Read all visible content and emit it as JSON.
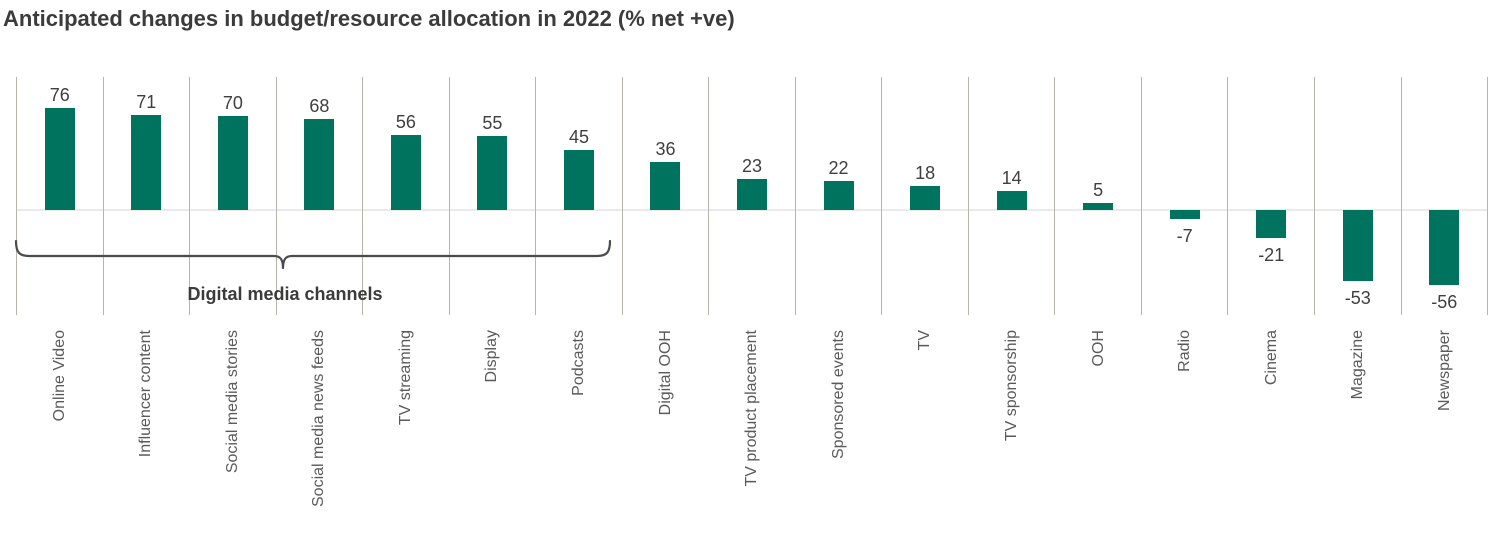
{
  "chart_data": {
    "type": "bar",
    "title": "Anticipated changes in budget/resource allocation in 2022 (% net +ve)",
    "categories": [
      "Online Video",
      "Influencer content",
      "Social media stories",
      "Social media news feeds",
      "TV streaming",
      "Display",
      "Podcasts",
      "Digital OOH",
      "TV product placement",
      "Sponsored events",
      "TV",
      "TV sponsorship",
      "OOH",
      "Radio",
      "Cinema",
      "Magazine",
      "Newspaper"
    ],
    "values": [
      76,
      71,
      70,
      68,
      56,
      55,
      45,
      36,
      23,
      22,
      18,
      14,
      5,
      -7,
      -21,
      -53,
      -56
    ],
    "annotation": {
      "label": "Digital media channels",
      "spans_categories": [
        "Online Video",
        "Influencer content",
        "Social media stories",
        "Social media news feeds",
        "TV streaming",
        "Display",
        "Podcasts"
      ]
    },
    "xlabel": "",
    "ylabel": "",
    "ylim": [
      -60,
      80
    ],
    "value_labels": "outside end of each bar",
    "grid": "vertical separators between categories, no horizontal gridlines, light zero baseline",
    "legend": "none",
    "category_label_rotation": "90deg counterclockwise, hanging below axis"
  },
  "colors": {
    "bar": "#00735F",
    "grid": "#b7b5a9",
    "zero": "#eaeae7",
    "title": "#3b3b3b",
    "value": "#3f3f3f",
    "category": "#5a5a5a",
    "brace": "#4b4b4b"
  }
}
